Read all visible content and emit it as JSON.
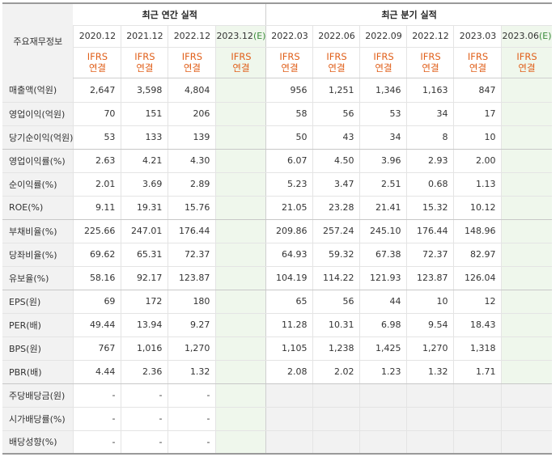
{
  "header": {
    "corner_label": "주요재무정보",
    "annual_title": "최근 연간 실적",
    "quarterly_title": "최근 분기 실적",
    "annual_periods": [
      {
        "label": "2020.12",
        "est": ""
      },
      {
        "label": "2021.12",
        "est": ""
      },
      {
        "label": "2022.12",
        "est": ""
      },
      {
        "label": "2023.12",
        "est": "(E)"
      }
    ],
    "quarterly_periods": [
      {
        "label": "2022.03",
        "est": ""
      },
      {
        "label": "2022.06",
        "est": ""
      },
      {
        "label": "2022.09",
        "est": ""
      },
      {
        "label": "2022.12",
        "est": ""
      },
      {
        "label": "2023.03",
        "est": ""
      },
      {
        "label": "2023.06",
        "est": "(E)"
      }
    ],
    "std_line1": "IFRS",
    "std_line2": "연결"
  },
  "rows": [
    {
      "label": "매출액(억원)",
      "annual": [
        "2,647",
        "3,598",
        "4,804",
        ""
      ],
      "quarterly": [
        "956",
        "1,251",
        "1,346",
        "1,163",
        "847",
        ""
      ]
    },
    {
      "label": "영업이익(억원)",
      "annual": [
        "70",
        "151",
        "206",
        ""
      ],
      "quarterly": [
        "58",
        "56",
        "53",
        "34",
        "17",
        ""
      ]
    },
    {
      "label": "당기순이익(억원)",
      "annual": [
        "53",
        "133",
        "139",
        ""
      ],
      "quarterly": [
        "50",
        "43",
        "34",
        "8",
        "10",
        ""
      ]
    },
    {
      "label": "영업이익률(%)",
      "annual": [
        "2.63",
        "4.21",
        "4.30",
        ""
      ],
      "quarterly": [
        "6.07",
        "4.50",
        "3.96",
        "2.93",
        "2.00",
        ""
      ]
    },
    {
      "label": "순이익률(%)",
      "annual": [
        "2.01",
        "3.69",
        "2.89",
        ""
      ],
      "quarterly": [
        "5.23",
        "3.47",
        "2.51",
        "0.68",
        "1.13",
        ""
      ]
    },
    {
      "label": "ROE(%)",
      "annual": [
        "9.11",
        "19.31",
        "15.76",
        ""
      ],
      "quarterly": [
        "21.05",
        "23.28",
        "21.41",
        "15.32",
        "10.12",
        ""
      ]
    },
    {
      "label": "부채비율(%)",
      "annual": [
        "225.66",
        "247.01",
        "176.44",
        ""
      ],
      "quarterly": [
        "209.86",
        "257.24",
        "245.10",
        "176.44",
        "148.96",
        ""
      ]
    },
    {
      "label": "당좌비율(%)",
      "annual": [
        "69.62",
        "65.31",
        "72.37",
        ""
      ],
      "quarterly": [
        "64.93",
        "59.32",
        "67.38",
        "72.37",
        "82.97",
        ""
      ]
    },
    {
      "label": "유보율(%)",
      "annual": [
        "58.16",
        "92.17",
        "123.87",
        ""
      ],
      "quarterly": [
        "104.19",
        "114.22",
        "121.93",
        "123.87",
        "126.04",
        ""
      ]
    },
    {
      "label": "EPS(원)",
      "annual": [
        "69",
        "172",
        "180",
        ""
      ],
      "quarterly": [
        "65",
        "56",
        "44",
        "10",
        "12",
        ""
      ]
    },
    {
      "label": "PER(배)",
      "annual": [
        "49.44",
        "13.94",
        "9.27",
        ""
      ],
      "quarterly": [
        "11.28",
        "10.31",
        "6.98",
        "9.54",
        "18.43",
        ""
      ]
    },
    {
      "label": "BPS(원)",
      "annual": [
        "767",
        "1,016",
        "1,270",
        ""
      ],
      "quarterly": [
        "1,105",
        "1,238",
        "1,425",
        "1,270",
        "1,318",
        ""
      ]
    },
    {
      "label": "PBR(배)",
      "annual": [
        "4.44",
        "2.36",
        "1.32",
        ""
      ],
      "quarterly": [
        "2.08",
        "2.02",
        "1.23",
        "1.32",
        "1.71",
        ""
      ]
    },
    {
      "label": "주당배당금(원)",
      "annual": [
        "-",
        "-",
        "-",
        ""
      ],
      "quarterly": null
    },
    {
      "label": "시가배당률(%)",
      "annual": [
        "-",
        "-",
        "-",
        ""
      ],
      "quarterly": null
    },
    {
      "label": "배당성향(%)",
      "annual": [
        "-",
        "-",
        "-",
        ""
      ],
      "quarterly": null
    }
  ]
}
